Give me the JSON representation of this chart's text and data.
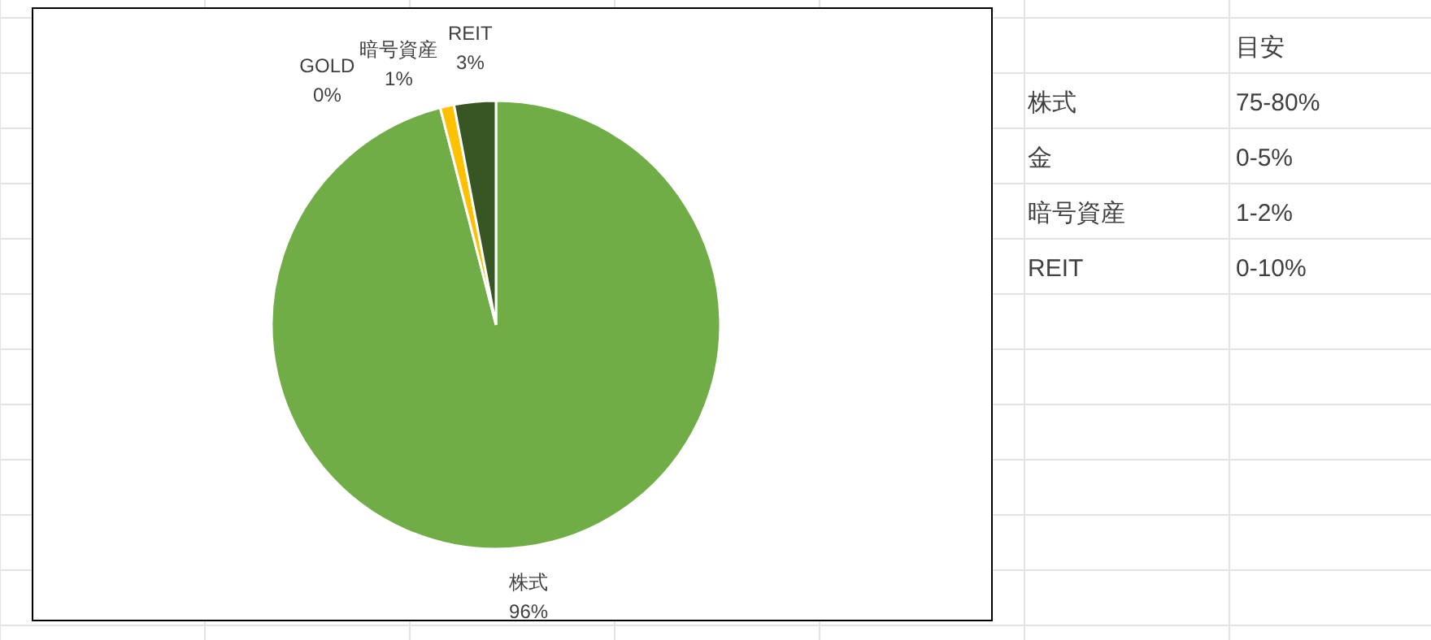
{
  "chart_data": [
    {
      "type": "pie",
      "categories": [
        "株式",
        "GOLD",
        "暗号資産",
        "REIT"
      ],
      "values": [
        96,
        0,
        1,
        3
      ],
      "colors": [
        "#70ad47",
        "#fff2cc",
        "#ffc000",
        "#375623"
      ],
      "value_labels": [
        "96%",
        "0%",
        "1%",
        "3%"
      ]
    },
    {
      "type": "other",
      "title": "目安",
      "annotations": [
        "株式",
        "75-80%",
        "金",
        "0-5%",
        "暗号資産",
        "1-2%",
        "REIT",
        "0-10%"
      ]
    }
  ]
}
